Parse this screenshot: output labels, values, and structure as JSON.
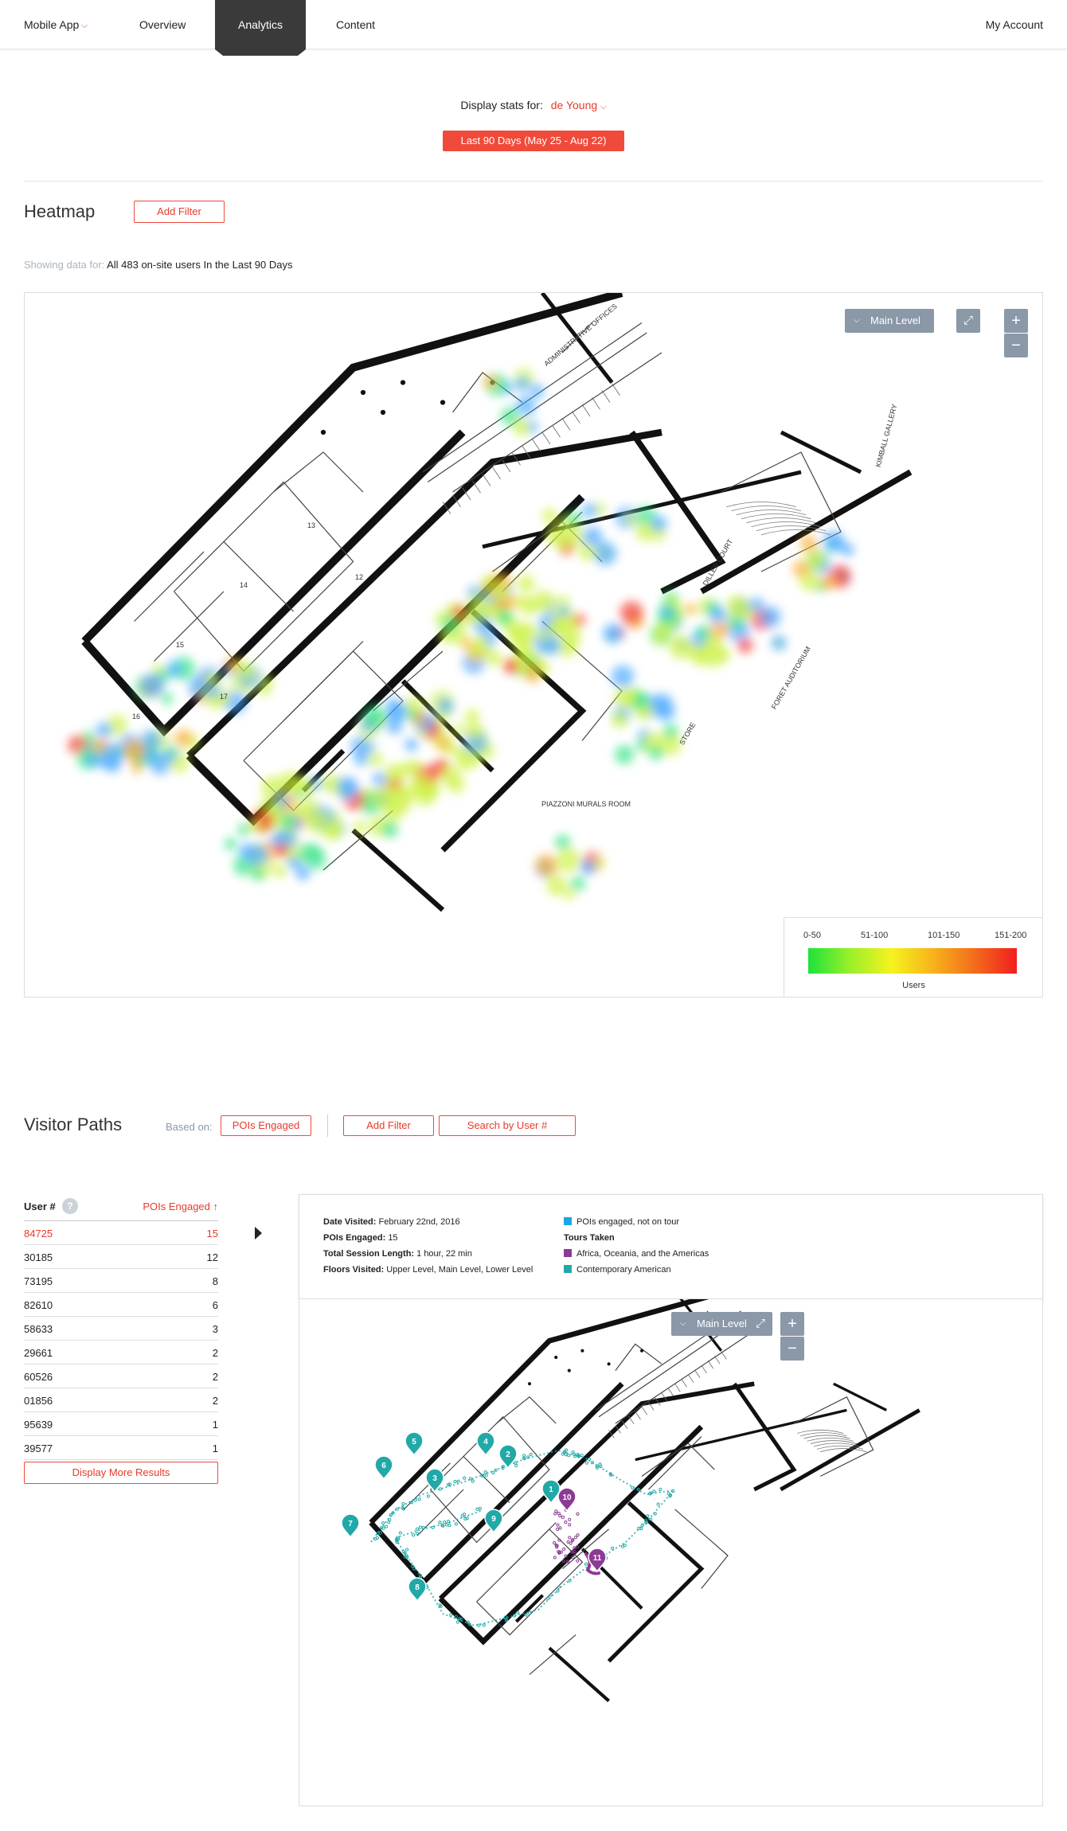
{
  "nav": {
    "app_label": "Mobile App",
    "overview": "Overview",
    "analytics": "Analytics",
    "content": "Content",
    "account": "My Account"
  },
  "stats": {
    "label": "Display stats for:",
    "venue": "de Young",
    "date_range": "Last 90 Days (May 25 - Aug 22)"
  },
  "heatmap": {
    "title": "Heatmap",
    "add_filter": "Add Filter",
    "showing_prefix": "Showing data for:",
    "showing_value": "All 483 on-site users In the Last 90 Days",
    "level": "Main Level",
    "zoom_in": "+",
    "zoom_out": "−",
    "legend": {
      "ranges": [
        "0-50",
        "51-100",
        "101-150",
        "151-200"
      ],
      "caption": "Users",
      "colors": [
        "#1ee23a",
        "#f6f21e",
        "#f36b1c",
        "#f21e1e"
      ]
    },
    "room_labels": [
      "ADMINISTRATIVE OFFICES",
      "KIMBALL GALLERY",
      "PIAZZONI MURALS ROOM",
      "STORE",
      "FORET AUDITORIUM",
      "DILLER COURT",
      "13",
      "12",
      "14",
      "15",
      "16",
      "17"
    ]
  },
  "paths": {
    "title": "Visitor Paths",
    "based_on": "Based on:",
    "pois_engaged": "POIs Engaged",
    "add_filter": "Add Filter",
    "search_by_user": "Search by User #",
    "table": {
      "col_user": "User #",
      "help": "?",
      "col_pois": "POIs Engaged ↑",
      "rows": [
        {
          "user": "84725",
          "pois": "15"
        },
        {
          "user": "30185",
          "pois": "12"
        },
        {
          "user": "73195",
          "pois": "8"
        },
        {
          "user": "82610",
          "pois": "6"
        },
        {
          "user": "58633",
          "pois": "3"
        },
        {
          "user": "29661",
          "pois": "2"
        },
        {
          "user": "60526",
          "pois": "2"
        },
        {
          "user": "01856",
          "pois": "2"
        },
        {
          "user": "95639",
          "pois": "1"
        },
        {
          "user": "39577",
          "pois": "1"
        }
      ],
      "more": "Display More Results"
    },
    "details": {
      "date_label": "Date Visited:",
      "date_value": "February 22nd, 2016",
      "pois_label": "POIs Engaged:",
      "pois_value": "15",
      "session_label": "Total Session Length:",
      "session_value": "1 hour, 22 min",
      "floors_label": "Floors Visited:",
      "floors_value": "Upper Level, Main Level, Lower Level"
    },
    "legend": {
      "not_on_tour": "POIs engaged, not on tour",
      "tours_taken": "Tours Taken",
      "tour_1": "Africa, Oceania, and the Americas",
      "tour_2": "Contemporary American",
      "color_not_on_tour": "#1aa7e0",
      "color_tour_1": "#8b3a95",
      "color_tour_2": "#21a9a8"
    },
    "level": "Main Level",
    "zoom_in": "+",
    "zoom_out": "−",
    "markers": [
      "1",
      "2",
      "3",
      "4",
      "5",
      "6",
      "7",
      "8",
      "9",
      "10",
      "11"
    ]
  }
}
